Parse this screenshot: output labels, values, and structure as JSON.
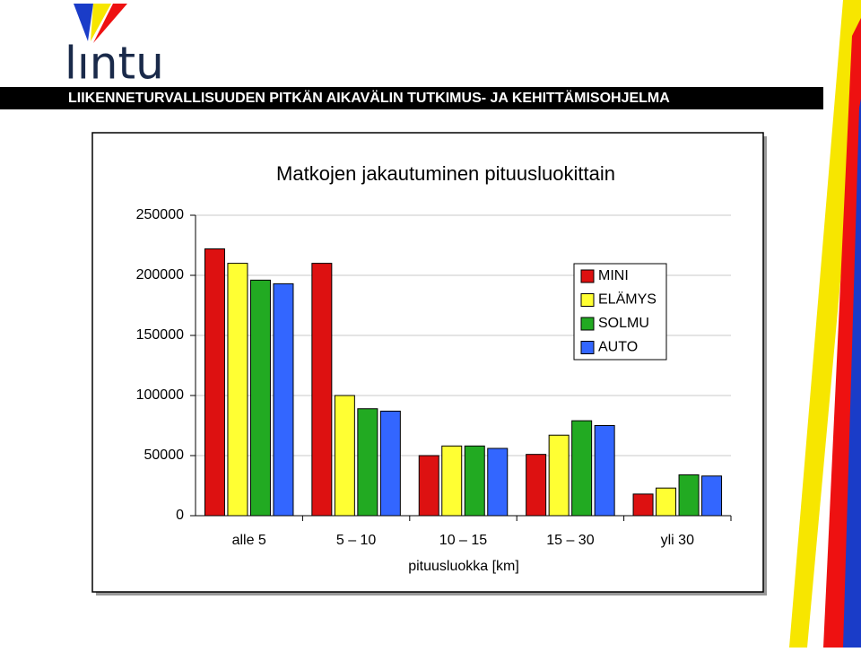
{
  "header": {
    "logo": "lıntu",
    "banner": "LIIKENNETURVALLISUUDEN PITKÄN AIKAVÄLIN TUTKIMUS- JA KEHITTÄMISOHJELMA"
  },
  "chart_data": {
    "type": "bar",
    "title": "Matkojen jakautuminen pituusluokittain",
    "x_label": "pituusluokka [km]",
    "categories": [
      "alle 5",
      "5 – 10",
      "10 – 15",
      "15 – 30",
      "yli 30"
    ],
    "series": [
      {
        "name": "MINI",
        "color": "#dd1111",
        "values": [
          222000,
          210000,
          50000,
          51000,
          18000
        ]
      },
      {
        "name": "ELÄMYS",
        "color": "#ffff33",
        "values": [
          210000,
          100000,
          58000,
          67000,
          23000
        ]
      },
      {
        "name": "SOLMU",
        "color": "#22aa22",
        "values": [
          196000,
          89000,
          58000,
          79000,
          34000
        ]
      },
      {
        "name": "AUTO",
        "color": "#3366ff",
        "values": [
          193000,
          87000,
          56000,
          75000,
          33000
        ]
      }
    ],
    "ylim": [
      0,
      250000
    ],
    "yticks": [
      0,
      50000,
      100000,
      150000,
      200000,
      250000
    ],
    "grid": true,
    "legend": "upper-right"
  }
}
